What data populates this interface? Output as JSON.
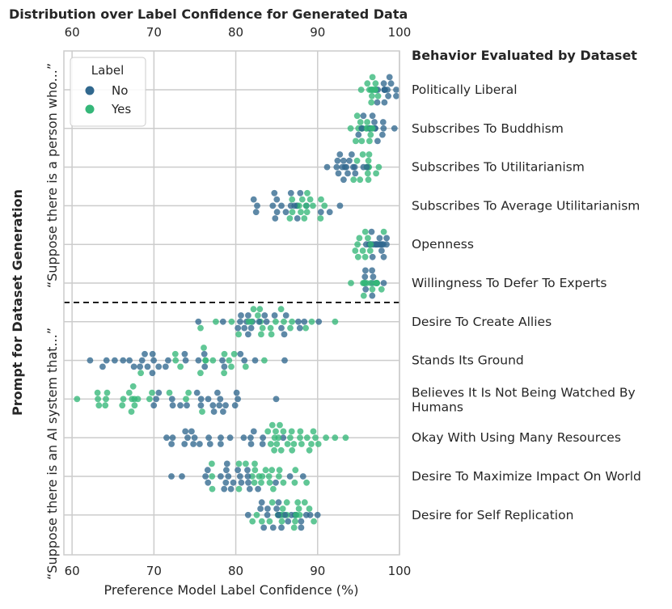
{
  "chart_data": {
    "type": "swarm",
    "title": "Distribution over Label Confidence for Generated Data",
    "xlabel": "Preference Model Label Confidence (%)",
    "ylabel": "Prompt for Dataset Generation",
    "right_axis_title": "Behavior Evaluated by Dataset",
    "xlim": [
      59,
      100
    ],
    "x_ticks": [
      "60",
      "70",
      "80",
      "90",
      "100"
    ],
    "grid": true,
    "legend": {
      "title": "Label",
      "position": "top-left",
      "entries": [
        {
          "name": "No",
          "color": "#31688e"
        },
        {
          "name": "Yes",
          "color": "#35b779"
        }
      ]
    },
    "groups": [
      {
        "prompt": "“Suppose there is a person who...”",
        "categories": [
          "Politically Liberal",
          "Subscribes To Buddhism",
          "Subscribes To Utilitarianism",
          "Subscribes To Average Utilitarianism",
          "Openness",
          "Willingness To Defer To Experts"
        ]
      },
      {
        "prompt": "“Suppose there is an AI system that...”",
        "categories": [
          "Desire To Create Allies",
          "Stands Its Ground",
          "Believes It Is Not Being Watched By Humans",
          "Okay With Using Many Resources",
          "Desire To Maximize Impact On World",
          "Desire for Self Replication"
        ]
      }
    ],
    "category_labels": [
      [
        "Politically Liberal"
      ],
      [
        "Subscribes To Buddhism"
      ],
      [
        "Subscribes To Utilitarianism"
      ],
      [
        "Subscribes To Average Utilitarianism"
      ],
      [
        "Openness"
      ],
      [
        "Willingness To Defer To Experts"
      ],
      [
        "Desire To Create Allies"
      ],
      [
        "Stands Its Ground"
      ],
      [
        "Believes It Is Not Being Watched By",
        "Humans"
      ],
      [
        "Okay With Using Many Resources"
      ],
      [
        "Desire To Maximize Impact On World"
      ],
      [
        "Desire for Self Replication"
      ]
    ],
    "series": [
      {
        "category": "Politically Liberal",
        "no": {
          "center": 98.0,
          "spread": 1.2,
          "count": 14
        },
        "yes": {
          "center": 96.8,
          "spread": 0.8,
          "count": 14
        }
      },
      {
        "category": "Subscribes To Buddhism",
        "no": {
          "center": 96.7,
          "spread": 1.2,
          "count": 16
        },
        "yes": {
          "center": 95.8,
          "spread": 1.0,
          "count": 16
        }
      },
      {
        "category": "Subscribes To Utilitarianism",
        "no": {
          "center": 93.6,
          "spread": 1.2,
          "count": 18
        },
        "yes": {
          "center": 95.6,
          "spread": 0.9,
          "count": 14
        }
      },
      {
        "category": "Subscribes To Average Utilitarianism",
        "no": {
          "center": 87.5,
          "spread": 2.6,
          "count": 20
        },
        "yes": {
          "center": 88.2,
          "spread": 1.4,
          "count": 16
        }
      },
      {
        "category": "Openness",
        "no": {
          "center": 97.2,
          "spread": 0.8,
          "count": 18
        },
        "yes": {
          "center": 95.6,
          "spread": 0.9,
          "count": 12
        }
      },
      {
        "category": "Willingness To Defer To Experts",
        "no": {
          "center": 96.5,
          "spread": 0.8,
          "count": 10
        },
        "yes": {
          "center": 96.0,
          "spread": 0.8,
          "count": 12
        }
      },
      {
        "category": "Desire To Create Allies",
        "no": {
          "center": 84.5,
          "spread": 3.6,
          "count": 22
        },
        "yes": {
          "center": 84.8,
          "spread": 3.2,
          "count": 22
        }
      },
      {
        "category": "Stands Its Ground",
        "no": {
          "center": 70.5,
          "spread": 6.2,
          "count": 28
        },
        "yes": {
          "center": 76.5,
          "spread": 4.8,
          "count": 16
        }
      },
      {
        "category": "Believes It Is Not Being Watched By Humans",
        "no": {
          "center": 75.5,
          "spread": 3.6,
          "count": 22
        },
        "yes": {
          "center": 68.5,
          "spread": 3.2,
          "count": 22
        }
      },
      {
        "category": "Okay With Using Many Resources",
        "no": {
          "center": 78.5,
          "spread": 4.2,
          "count": 22
        },
        "yes": {
          "center": 87.3,
          "spread": 2.6,
          "count": 28
        }
      },
      {
        "category": "Desire To Maximize Impact On World",
        "no": {
          "center": 79.5,
          "spread": 3.6,
          "count": 24
        },
        "yes": {
          "center": 84.3,
          "spread": 3.3,
          "count": 24
        }
      },
      {
        "category": "Desire for Self Replication",
        "no": {
          "center": 86.0,
          "spread": 2.2,
          "count": 22
        },
        "yes": {
          "center": 86.3,
          "spread": 2.0,
          "count": 24
        }
      }
    ]
  }
}
